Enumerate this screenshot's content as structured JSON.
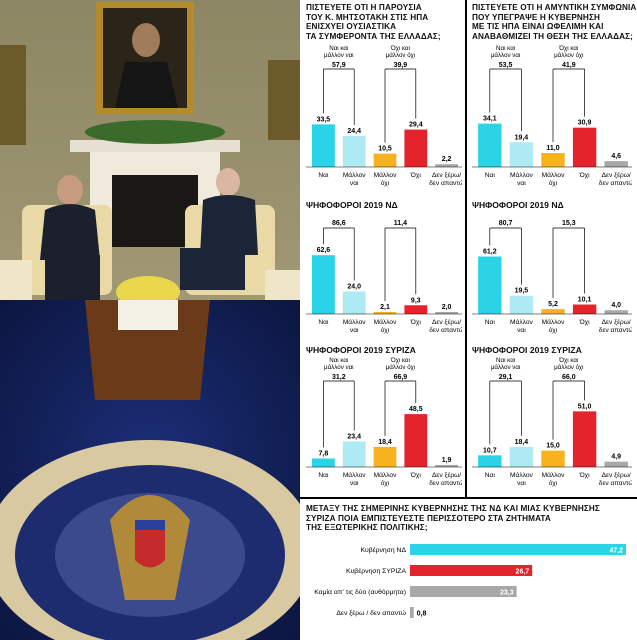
{
  "photo": {
    "description": "Greek Prime Minister and US President seated in the Oval Office"
  },
  "colors": {
    "cyan": "#2bd3e6",
    "light_cyan": "#aeeaf3",
    "orange": "#f7b21f",
    "red": "#e4232b",
    "grey": "#a8a8a8"
  },
  "chart_data": [
    {
      "type": "bar",
      "title": "ΠΙΣΤΕΥΕΤΕ ΟΤΙ Η ΠΑΡΟΥΣΙΑ ΤΟΥ κ. ΜΗΤΣΟΤΑΚΗ ΣΤΙΣ ΗΠΑ ΕΝΙΣΧΥΕΙ ΟΥΣΙΑΣΤΙΚΑ ΤΑ ΣΥΜΦΕΡΟΝΤΑ ΤΗΣ ΕΛΛΑΔΑΣ;",
      "title_lines": [
        "ΠΙΣΤΕΥΕΤΕ ΟΤΙ Η ΠΑΡΟΥΣΙΑ",
        "ΤΟΥ κ. ΜΗΤΣΟΤΑΚΗ ΣΤΙΣ ΗΠΑ",
        "ΕΝΙΣΧΥΕΙ ΟΥΣΙΑΣΤΙΚΑ",
        "ΤΑ ΣΥΜΦΕΡΟΝΤΑ ΤΗΣ ΕΛΛΑΔΑΣ;"
      ],
      "subtitle": "",
      "categories": [
        "Ναι",
        "Μάλλον ναι",
        "Μάλλον όχι",
        "Όχι",
        "Δεν ξέρω/ δεν απαντώ"
      ],
      "values": [
        33.5,
        24.4,
        10.5,
        29.4,
        2.2
      ],
      "labels": [
        "33,5",
        "24,4",
        "10,5",
        "29,4",
        "2,2"
      ],
      "groups": [
        {
          "label": "Ναι και μάλλον ναι",
          "value": "57,9"
        },
        {
          "label": "Όχι και μάλλον όχι",
          "value": "39,9"
        }
      ]
    },
    {
      "type": "bar",
      "subtitle": "ΨΗΦΟΦΟΡΟΙ 2019 ΝΔ",
      "categories": [
        "Ναι",
        "Μάλλον ναι",
        "Μάλλον όχι",
        "Όχι",
        "Δεν ξέρω/ δεν απαντώ"
      ],
      "values": [
        62.6,
        24.0,
        2.1,
        9.3,
        2.0
      ],
      "labels": [
        "62,6",
        "24,0",
        "2,1",
        "9,3",
        "2,0"
      ],
      "groups": [
        {
          "label": "",
          "value": "86,6"
        },
        {
          "label": "",
          "value": "11,4"
        }
      ]
    },
    {
      "type": "bar",
      "subtitle": "ΨΗΦΟΦΟΡΟΙ 2019 ΣΥΡΙΖΑ",
      "categories": [
        "Ναι",
        "Μάλλον ναι",
        "Μάλλον όχι",
        "Όχι",
        "Δεν ξέρω/ δεν απαντώ"
      ],
      "values": [
        7.8,
        23.4,
        18.4,
        48.5,
        1.9
      ],
      "labels": [
        "7,8",
        "23,4",
        "18,4",
        "48,5",
        "1,9"
      ],
      "groups": [
        {
          "label": "Ναι και μάλλον ναι",
          "value": "31,2"
        },
        {
          "label": "Όχι και μάλλον όχι",
          "value": "66,9"
        }
      ]
    },
    {
      "type": "bar",
      "title": "ΠΙΣΤΕΥΕΤΕ ΟΤΙ Η ΑΜΥΝΤΙΚΗ ΣΥΜΦΩΝΙΑ ΠΟΥ ΥΠΕΓΡΑΨΕ Η ΚΥΒΕΡΝΗΣΗ ΜΕ ΤΙΣ ΗΠΑ ΕΙΝΑΙ ΩΦΕΛΙΜΗ ΚΑΙ ΑΝΑΒΑΘΜΙΖΕΙ ΤΗ ΘΕΣΗ ΤΗΣ ΕΛΛΑΔΑΣ;",
      "title_lines": [
        "ΠΙΣΤΕΥΕΤΕ ΟΤΙ Η ΑΜΥΝΤΙΚΗ ΣΥΜΦΩΝΙΑ",
        "ΠΟΥ ΥΠΕΓΡΑΨΕ Η ΚΥΒΕΡΝΗΣΗ",
        "ΜΕ ΤΙΣ ΗΠΑ ΕΙΝΑΙ ΩΦΕΛΙΜΗ ΚΑΙ",
        "ΑΝΑΒΑΘΜΙΖΕΙ ΤΗ ΘΕΣΗ ΤΗΣ ΕΛΛΑΔΑΣ;"
      ],
      "subtitle": "",
      "categories": [
        "Ναι",
        "Μάλλον ναι",
        "Μάλλον όχι",
        "Όχι",
        "Δεν ξέρω/ δεν απαντώ"
      ],
      "values": [
        34.1,
        19.4,
        11.0,
        30.9,
        4.6
      ],
      "labels": [
        "34,1",
        "19,4",
        "11,0",
        "30,9",
        "4,6"
      ],
      "groups": [
        {
          "label": "Ναι και μάλλον ναι",
          "value": "53,5"
        },
        {
          "label": "Όχι και μάλλον όχι",
          "value": "41,9"
        }
      ]
    },
    {
      "type": "bar",
      "subtitle": "ΨΗΦΟΦΟΡΟΙ 2019 ΝΔ",
      "categories": [
        "Ναι",
        "Μάλλον ναι",
        "Μάλλον όχι",
        "Όχι",
        "Δεν ξέρω/ δεν απαντώ"
      ],
      "values": [
        61.2,
        19.5,
        5.2,
        10.1,
        4.0
      ],
      "labels": [
        "61,2",
        "19,5",
        "5,2",
        "10,1",
        "4,0"
      ],
      "groups": [
        {
          "label": "",
          "value": "80,7"
        },
        {
          "label": "",
          "value": "15,3"
        }
      ]
    },
    {
      "type": "bar",
      "subtitle": "ΨΗΦΟΦΟΡΟΙ 2019 ΣΥΡΙΖΑ",
      "categories": [
        "Ναι",
        "Μάλλον ναι",
        "Μάλλον όχι",
        "Όχι",
        "Δεν ξέρω/ δεν απαντώ"
      ],
      "values": [
        10.7,
        18.4,
        15.0,
        51.0,
        4.9
      ],
      "labels": [
        "10,7",
        "18,4",
        "15,0",
        "51,0",
        "4,9"
      ],
      "groups": [
        {
          "label": "Ναι και μάλλον ναι",
          "value": "29,1"
        },
        {
          "label": "Όχι και μάλλον όχι",
          "value": "66,0"
        }
      ]
    },
    {
      "type": "bar",
      "orientation": "horizontal",
      "title": "ΜΕΤΑΞΥ ΤΗΣ ΣΗΜΕΡΙΝΗΣ ΚΥΒΕΡΝΗΣΗΣ ΤΗΣ ΝΔ ΚΑΙ ΜΙΑΣ ΚΥΒΕΡΝΗΣΗΣ ΣΥΡΙΖΑ ΠΟΙΑ ΕΜΠΙΣΤΕΥΕΣΤΕ ΠΕΡΙΣΣΟΤΕΡΟ ΣΤΑ ΖΗΤΗΜΑΤΑ ΤΗΣ ΕΞΩΤΕΡΙΚΗΣ ΠΟΛΙΤΙΚΗΣ;",
      "title_lines": [
        "ΜΕΤΑΞΥ ΤΗΣ ΣΗΜΕΡΙΝΗΣ ΚΥΒΕΡΝΗΣΗΣ ΤΗΣ ΝΔ ΚΑΙ ΜΙΑΣ ΚΥΒΕΡΝΗΣΗΣ",
        "ΣΥΡΙΖΑ ΠΟΙΑ ΕΜΠΙΣΤΕΥΕΣΤΕ ΠΕΡΙΣΣΟΤΕΡΟ ΣΤΑ ΖΗΤΗΜΑΤΑ",
        "ΤΗΣ ΕΞΩΤΕΡΙΚΗΣ ΠΟΛΙΤΙΚΗΣ;"
      ],
      "categories": [
        "Κυβέρνηση ΝΔ",
        "Κυβέρνηση ΣΥΡΙΖΑ",
        "Καμία απ' τις δύο (αυθόρμητα)",
        "Δεν ξέρω / δεν απαντώ"
      ],
      "values": [
        47.2,
        26.7,
        23.3,
        0.8
      ],
      "labels": [
        "47,2",
        "26,7",
        "23,3",
        "0,8"
      ]
    }
  ]
}
